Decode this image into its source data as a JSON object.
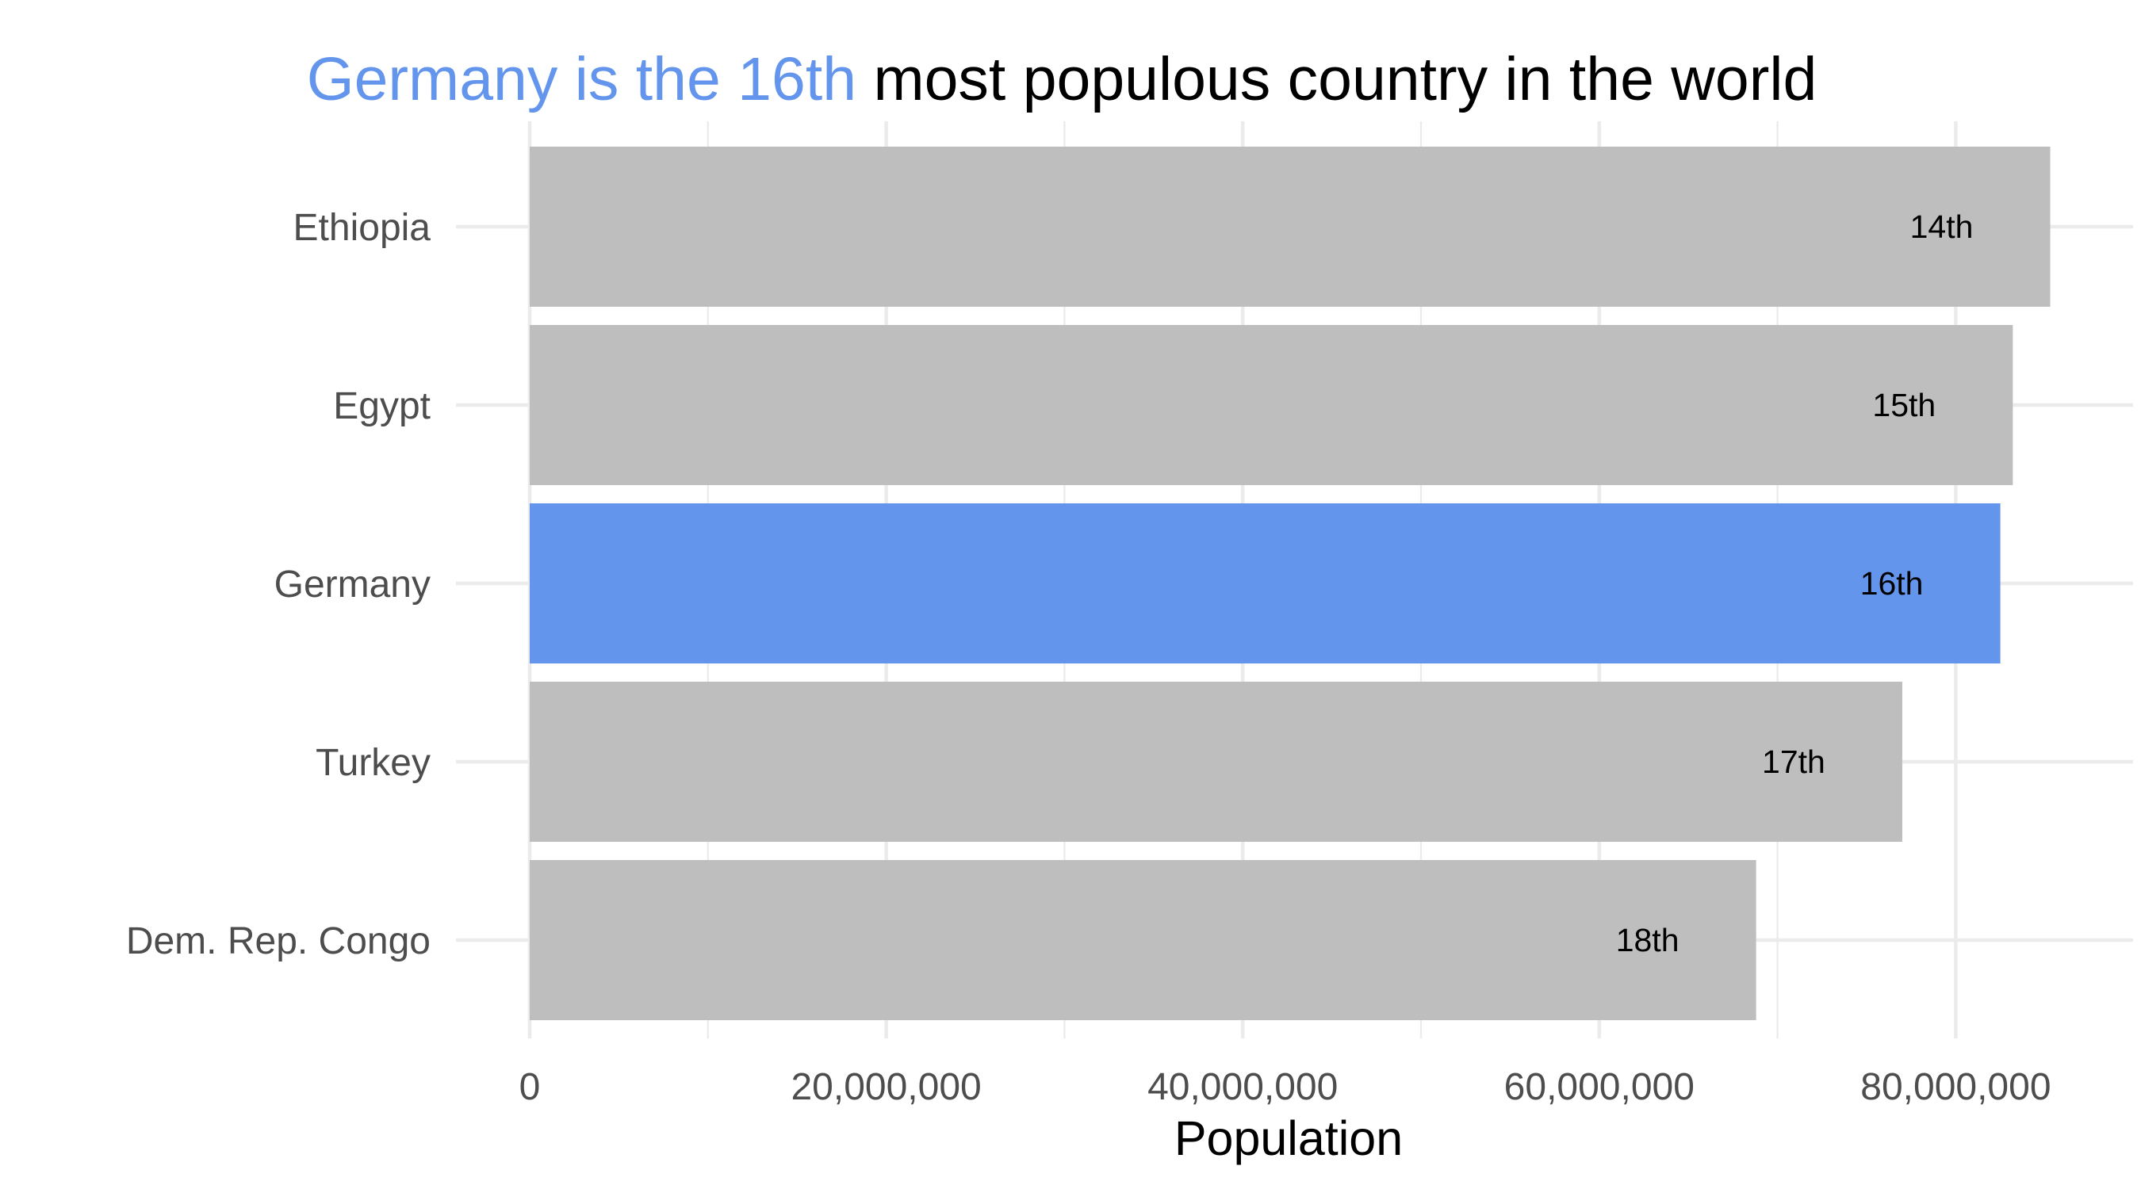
{
  "chart_data": {
    "type": "bar",
    "orientation": "horizontal",
    "title": {
      "highlight": "Germany is the 16th",
      "rest": " most populous country in the world"
    },
    "xlabel": "Population",
    "ylabel": "",
    "categories": [
      "Ethiopia",
      "Egypt",
      "Germany",
      "Turkey",
      "Dem. Rep. Congo"
    ],
    "values": [
      85300000,
      83200000,
      82500000,
      77000000,
      68800000
    ],
    "rank_labels": [
      "14th",
      "15th",
      "16th",
      "17th",
      "18th"
    ],
    "highlight_category": "Germany",
    "xlim": [
      0,
      89000000
    ],
    "x_ticks": [
      0,
      20000000,
      40000000,
      60000000,
      80000000
    ],
    "x_tick_labels": [
      "0",
      "20,000,000",
      "40,000,000",
      "60,000,000",
      "80,000,000"
    ],
    "grid": true,
    "legend": "none",
    "colors": {
      "highlight": "#6495ED",
      "default": "#BEBEBE"
    }
  }
}
